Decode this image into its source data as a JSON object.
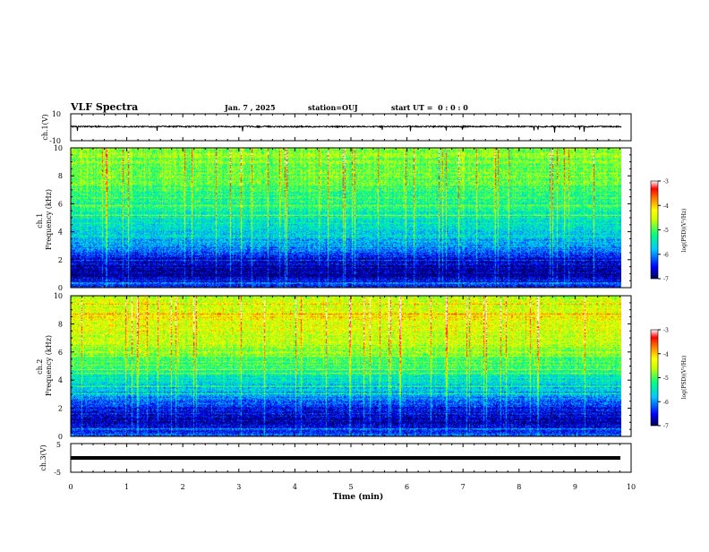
{
  "header": {
    "title": "VLF Spectra",
    "date": "Jan. 7 , 2025",
    "station": "station=OUJ",
    "start": "start UT =  0 : 0 : 0"
  },
  "colors": {
    "scale": [
      "#00004d",
      "#0000ff",
      "#00c8ff",
      "#00ff80",
      "#c8ff00",
      "#ffff00",
      "#ff8000",
      "#ff0000",
      "#ffffff"
    ],
    "trace": "#000000"
  },
  "chart_data": [
    {
      "type": "line",
      "ylabel": "ch.1(V)",
      "ylim": [
        -10,
        10
      ],
      "ytick_labels": [
        "10",
        "-10"
      ],
      "description_values": {
        "baseline_V": 0.5,
        "noise_amplitude_V": 0.5,
        "spike_amplitude_V": -4
      }
    },
    {
      "type": "heatmap",
      "ylabel": "ch.1 Frequency (kHz)",
      "ylim": [
        0,
        10
      ],
      "ytick_labels": [
        "0",
        "2",
        "4",
        "6",
        "8",
        "10"
      ],
      "colorbar": {
        "label": "log(PSD)(V²/Hz)",
        "range": [
          -7,
          -3
        ],
        "tick_labels": [
          "-3",
          "-4",
          "-5",
          "-6",
          "-7"
        ]
      },
      "level_profile_log_psd": [
        {
          "freq_kHz": 0.0,
          "level": -6.4
        },
        {
          "freq_kHz": 1.0,
          "level": -6.8
        },
        {
          "freq_kHz": 2.0,
          "level": -6.6
        },
        {
          "freq_kHz": 3.0,
          "level": -6.0
        },
        {
          "freq_kHz": 4.0,
          "level": -5.6
        },
        {
          "freq_kHz": 6.0,
          "level": -5.3
        },
        {
          "freq_kHz": 8.0,
          "level": -4.9
        },
        {
          "freq_kHz": 10.0,
          "level": -4.8
        }
      ]
    },
    {
      "type": "heatmap",
      "ylabel": "ch.2 Frequency (kHz)",
      "ylim": [
        0,
        10
      ],
      "ytick_labels": [
        "0",
        "2",
        "4",
        "6",
        "8",
        "10"
      ],
      "colorbar": {
        "label": "log(PSD)(V²/Hz)",
        "range": [
          -7,
          -3
        ],
        "tick_labels": [
          "-3",
          "-4",
          "-5",
          "-6",
          "-7"
        ]
      },
      "level_profile_log_psd": [
        {
          "freq_kHz": 0.0,
          "level": -6.2
        },
        {
          "freq_kHz": 1.0,
          "level": -6.7
        },
        {
          "freq_kHz": 2.0,
          "level": -6.5
        },
        {
          "freq_kHz": 3.0,
          "level": -5.9
        },
        {
          "freq_kHz": 5.0,
          "level": -5.2
        },
        {
          "freq_kHz": 7.0,
          "level": -4.5
        },
        {
          "freq_kHz": 8.5,
          "level": -4.3
        },
        {
          "freq_kHz": 10.0,
          "level": -4.6
        }
      ]
    },
    {
      "type": "line",
      "ylabel": "ch.3(V)",
      "ylim": [
        -5,
        5
      ],
      "ytick_labels": [
        "5",
        "-5"
      ],
      "description_values": {
        "constant_V": 0.0
      }
    }
  ],
  "xaxis": {
    "label": "Time (min)",
    "range": [
      0,
      10
    ],
    "tick_labels": [
      "0",
      "1",
      "2",
      "3",
      "4",
      "5",
      "6",
      "7",
      "8",
      "9",
      "10"
    ],
    "data_end_min": 9.83
  }
}
